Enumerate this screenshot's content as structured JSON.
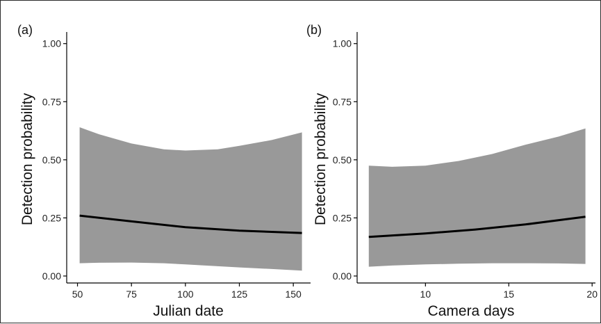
{
  "colors": {
    "band": "#999999",
    "line": "#000000",
    "axis": "#000000",
    "frame": "#2b2b2b"
  },
  "chart_data": [
    {
      "type": "area",
      "panel_label": "(a)",
      "xlabel": "Julian date",
      "ylabel": "Detection probability",
      "xlim": [
        45,
        158
      ],
      "ylim": [
        -0.03,
        1.05
      ],
      "xticks": [
        50,
        75,
        100,
        125,
        150
      ],
      "xtick_labels": [
        "50",
        "75",
        "100",
        "125",
        "150"
      ],
      "yticks": [
        0,
        0.25,
        0.5,
        0.75,
        1
      ],
      "ytick_labels": [
        "0.00",
        "0.25",
        "0.50",
        "0.75",
        "1.00"
      ],
      "grid": false,
      "series": [
        {
          "role": "estimate",
          "x": [
            51,
            75,
            100,
            125,
            154
          ],
          "y": [
            0.26,
            0.235,
            0.21,
            0.195,
            0.185
          ]
        },
        {
          "role": "confidence-band",
          "x": [
            51,
            60,
            75,
            90,
            100,
            115,
            125,
            140,
            154
          ],
          "lower": [
            0.055,
            0.057,
            0.058,
            0.055,
            0.05,
            0.042,
            0.037,
            0.03,
            0.023
          ],
          "upper": [
            0.64,
            0.61,
            0.57,
            0.545,
            0.54,
            0.545,
            0.56,
            0.585,
            0.618
          ]
        }
      ]
    },
    {
      "type": "area",
      "panel_label": "(b)",
      "xlabel": "Camera days",
      "ylabel": "Detection probability",
      "xlim": [
        5.9,
        20.2
      ],
      "ylim": [
        -0.03,
        1.05
      ],
      "xticks": [
        10,
        15,
        20
      ],
      "xtick_labels": [
        "10",
        "15",
        "20"
      ],
      "yticks": [
        0,
        0.25,
        0.5,
        0.75,
        1
      ],
      "ytick_labels": [
        "0.00",
        "0.25",
        "0.50",
        "0.75",
        "1.00"
      ],
      "grid": false,
      "series": [
        {
          "role": "estimate",
          "x": [
            6.6,
            10,
            13,
            16,
            19.6
          ],
          "y": [
            0.168,
            0.183,
            0.2,
            0.222,
            0.255
          ]
        },
        {
          "role": "confidence-band",
          "x": [
            6.6,
            8,
            10,
            12,
            14,
            16,
            18,
            19.6
          ],
          "lower": [
            0.04,
            0.045,
            0.05,
            0.053,
            0.055,
            0.055,
            0.054,
            0.052
          ],
          "upper": [
            0.475,
            0.47,
            0.475,
            0.495,
            0.525,
            0.565,
            0.6,
            0.635
          ]
        }
      ]
    }
  ]
}
